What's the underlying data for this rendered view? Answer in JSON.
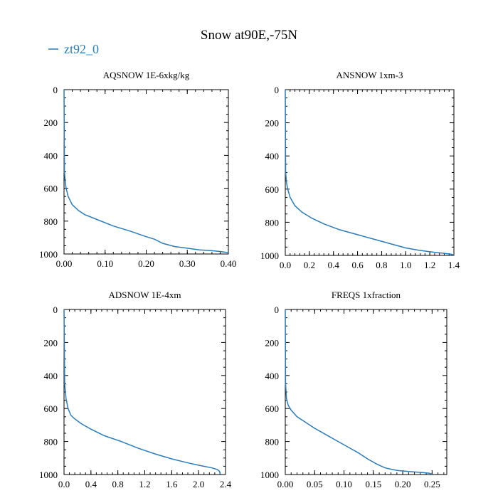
{
  "title": "Snow at90E,-75N",
  "legend": {
    "label": "zt92_0",
    "color": "#2b7bb9"
  },
  "chart_data": [
    {
      "type": "line",
      "title": "AQSNOW  1E-6xkg/kg",
      "xlim": [
        0,
        0.4
      ],
      "ylim": [
        1000,
        0
      ],
      "xticks": [
        "0.00",
        "0.10",
        "0.20",
        "0.30",
        "0.40"
      ],
      "yticks": [
        "0",
        "200",
        "400",
        "600",
        "800",
        "1000"
      ],
      "series": [
        {
          "name": "zt92_0",
          "x": [
            0,
            0.001,
            0.003,
            0.005,
            0.01,
            0.02,
            0.035,
            0.05,
            0.08,
            0.12,
            0.16,
            0.2,
            0.22,
            0.24,
            0.27,
            0.3,
            0.33,
            0.36,
            0.38,
            0.395,
            0.4
          ],
          "y": [
            0,
            500,
            560,
            600,
            650,
            700,
            735,
            760,
            790,
            830,
            860,
            895,
            910,
            935,
            955,
            965,
            975,
            980,
            985,
            990,
            995
          ]
        }
      ]
    },
    {
      "type": "line",
      "title": "ANSNOW  1xm-3",
      "xlim": [
        0,
        1.4
      ],
      "ylim": [
        1000,
        0
      ],
      "xticks": [
        "0.0",
        "0.2",
        "0.4",
        "0.6",
        "0.8",
        "1.0",
        "1.2",
        "1.4"
      ],
      "yticks": [
        "0",
        "200",
        "400",
        "600",
        "800",
        "1000"
      ],
      "series": [
        {
          "name": "zt92_0",
          "x": [
            0,
            0.003,
            0.01,
            0.02,
            0.04,
            0.08,
            0.14,
            0.22,
            0.32,
            0.45,
            0.6,
            0.75,
            0.9,
            1.0,
            1.1,
            1.2,
            1.3,
            1.38,
            1.4
          ],
          "y": [
            0,
            500,
            560,
            600,
            650,
            700,
            740,
            775,
            810,
            845,
            875,
            905,
            935,
            955,
            968,
            978,
            986,
            993,
            998
          ]
        }
      ]
    },
    {
      "type": "line",
      "title": "ADSNOW  1E-4xm",
      "xlim": [
        0,
        2.4
      ],
      "ylim": [
        1000,
        0
      ],
      "xticks": [
        "0.0",
        "0.4",
        "0.8",
        "1.2",
        "1.6",
        "2.0",
        "2.4"
      ],
      "yticks": [
        "0",
        "200",
        "400",
        "600",
        "800",
        "1000"
      ],
      "series": [
        {
          "name": "zt92_0",
          "x": [
            0,
            0.01,
            0.03,
            0.06,
            0.1,
            0.15,
            0.25,
            0.4,
            0.6,
            0.85,
            1.1,
            1.35,
            1.6,
            1.85,
            2.05,
            2.2,
            2.28,
            2.31,
            2.32
          ],
          "y": [
            0,
            450,
            540,
            600,
            640,
            660,
            690,
            725,
            765,
            800,
            840,
            875,
            905,
            930,
            948,
            960,
            970,
            980,
            998
          ]
        }
      ]
    },
    {
      "type": "line",
      "title": "FREQS  1xfraction",
      "xlim": [
        0,
        0.275
      ],
      "ylim": [
        1000,
        0
      ],
      "xticks": [
        "0.00",
        "0.05",
        "0.10",
        "0.15",
        "0.20",
        "0.25"
      ],
      "yticks": [
        "0",
        "200",
        "400",
        "600",
        "800",
        "1000"
      ],
      "series": [
        {
          "name": "zt92_0",
          "x": [
            0,
            0.0005,
            0.002,
            0.005,
            0.01,
            0.02,
            0.035,
            0.05,
            0.07,
            0.09,
            0.11,
            0.125,
            0.14,
            0.155,
            0.17,
            0.19,
            0.21,
            0.23,
            0.245,
            0.25
          ],
          "y": [
            0,
            450,
            540,
            580,
            610,
            650,
            685,
            720,
            760,
            800,
            840,
            870,
            905,
            935,
            960,
            975,
            982,
            987,
            992,
            998
          ]
        }
      ]
    }
  ]
}
